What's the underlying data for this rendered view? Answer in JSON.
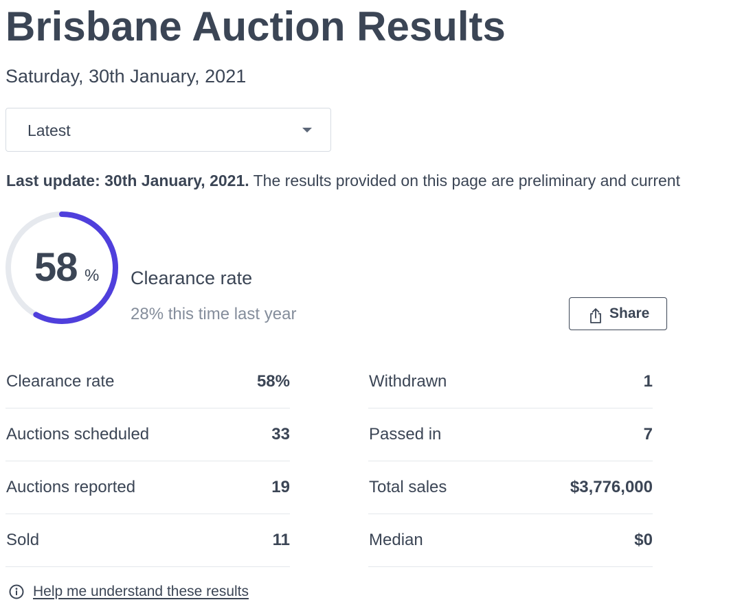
{
  "page": {
    "title": "Brisbane Auction Results",
    "date": "Saturday, 30th January, 2021"
  },
  "filter": {
    "selected": "Latest",
    "icon": "chevron-down-icon"
  },
  "update": {
    "bold": "Last update: 30th January, 2021.",
    "text": " The results provided on this page are preliminary and current"
  },
  "clearance": {
    "value": "58",
    "unit": "%",
    "rate_fraction": 0.58,
    "label": "Clearance rate",
    "last_year": "28% this time last year",
    "colors": {
      "progress": "#4f3fdc",
      "track": "#e6e9ee"
    }
  },
  "share": {
    "label": "Share",
    "icon": "share-icon"
  },
  "stats_left": [
    {
      "label": "Clearance rate",
      "value": "58%"
    },
    {
      "label": "Auctions scheduled",
      "value": "33"
    },
    {
      "label": "Auctions reported",
      "value": "19"
    },
    {
      "label": "Sold",
      "value": "11"
    }
  ],
  "stats_right": [
    {
      "label": "Withdrawn",
      "value": "1"
    },
    {
      "label": "Passed in",
      "value": "7"
    },
    {
      "label": "Total sales",
      "value": "$3,776,000"
    },
    {
      "label": "Median",
      "value": "$0"
    }
  ],
  "help": {
    "label": "Help me understand these results",
    "icon": "info-icon"
  }
}
